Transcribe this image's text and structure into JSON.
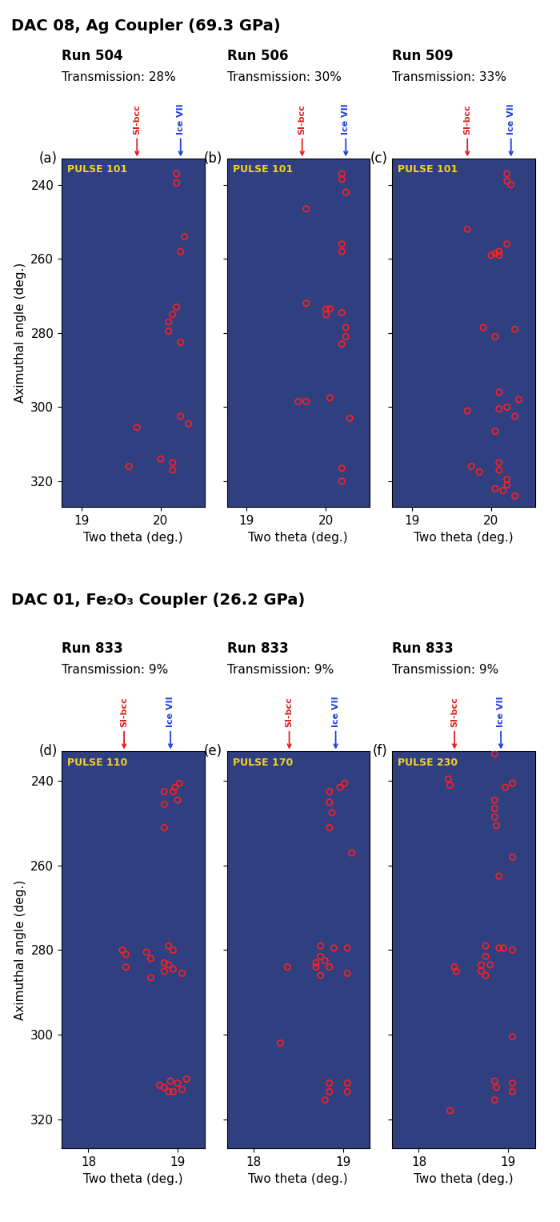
{
  "group_titles": [
    "DAC 08, Ag Coupler (69.3 GPa)",
    "DAC 01, Fe₂O₃ Coupler (26.2 GPa)"
  ],
  "chart_data": [
    {
      "type": "scatter",
      "group": 0,
      "panel": "(a)",
      "run": "Run 504",
      "transmission": "Transmission: 28%",
      "pulse": "PULSE 101",
      "x_label": "Two theta (deg.)",
      "y_label": "Aximuthal angle (deg.)",
      "tick_labels": true,
      "xlim": [
        18.75,
        20.55
      ],
      "xticks": [
        19,
        20
      ],
      "ylim": [
        327,
        233
      ],
      "yticks": [
        240,
        260,
        280,
        300,
        320
      ],
      "color": "#ff2020",
      "marker": "circle",
      "annotations": [
        {
          "text": "SI-bcc",
          "x": 19.7,
          "color": "#e02020"
        },
        {
          "text": "Ice VII",
          "x": 20.25,
          "color": "#1f3fe0"
        }
      ],
      "x": [
        20.2,
        20.2,
        20.3,
        20.25,
        20.2,
        20.15,
        20.1,
        20.1,
        20.25,
        20.25,
        20.35,
        19.7,
        19.6,
        20.0,
        20.15,
        20.15
      ],
      "y": [
        237,
        239.5,
        254,
        258,
        273,
        275,
        277,
        279.5,
        282.5,
        302.5,
        304.5,
        305.5,
        316,
        314,
        315,
        317
      ]
    },
    {
      "type": "scatter",
      "group": 0,
      "panel": "(b)",
      "run": "Run 506",
      "transmission": "Transmission: 30%",
      "pulse": "PULSE 101",
      "x_label": "Two theta (deg.)",
      "tick_labels": "x",
      "xlim": [
        18.75,
        20.55
      ],
      "xticks": [
        19,
        20
      ],
      "ylim": [
        327,
        233
      ],
      "yticks": [
        240,
        260,
        280,
        300,
        320
      ],
      "color": "#ff2020",
      "marker": "circle",
      "annotations": [
        {
          "text": "SI-bcc",
          "x": 19.7,
          "color": "#e02020"
        },
        {
          "text": "Ice VII",
          "x": 20.25,
          "color": "#1f3fe0"
        }
      ],
      "x": [
        20.2,
        20.2,
        20.25,
        19.75,
        20.2,
        20.2,
        19.75,
        20.0,
        20.05,
        20.0,
        20.2,
        20.25,
        20.25,
        20.2,
        19.65,
        19.75,
        20.05,
        20.3,
        20.2,
        20.2
      ],
      "y": [
        237,
        238.5,
        242,
        246.5,
        256,
        258,
        272,
        273.5,
        273.5,
        275,
        274.5,
        278.5,
        281,
        283,
        298.5,
        298.5,
        297.5,
        303,
        316.5,
        320
      ]
    },
    {
      "type": "scatter",
      "group": 0,
      "panel": "(c)",
      "run": "Run 509",
      "transmission": "Transmission: 33%",
      "pulse": "PULSE 101",
      "x_label": "Two theta (deg.)",
      "tick_labels": "x",
      "xlim": [
        18.75,
        20.55
      ],
      "xticks": [
        19,
        20
      ],
      "ylim": [
        327,
        233
      ],
      "yticks": [
        240,
        260,
        280,
        300,
        320
      ],
      "color": "#ff2020",
      "marker": "circle",
      "annotations": [
        {
          "text": "SI-bcc",
          "x": 19.7,
          "color": "#e02020"
        },
        {
          "text": "Ice VII",
          "x": 20.25,
          "color": "#1f3fe0"
        }
      ],
      "x": [
        20.2,
        20.2,
        20.25,
        19.7,
        20.2,
        20.1,
        20.05,
        20.1,
        20.0,
        19.9,
        20.05,
        20.3,
        20.1,
        20.2,
        20.35,
        20.1,
        20.3,
        19.7,
        20.05,
        19.75,
        19.85,
        20.1,
        20.1,
        20.05,
        20.2,
        20.2,
        20.15,
        20.3
      ],
      "y": [
        237,
        239,
        240,
        252,
        256,
        258,
        258.5,
        259,
        259,
        278.5,
        281,
        279,
        296,
        300,
        298,
        300.5,
        302.5,
        301,
        306.5,
        316,
        317.5,
        315,
        317,
        322,
        319.5,
        321,
        322.5,
        324
      ]
    },
    {
      "type": "scatter",
      "group": 1,
      "panel": "(d)",
      "run": "Run 833",
      "transmission": "Transmission: 9%",
      "pulse": "PULSE 110",
      "x_label": "Two theta (deg.)",
      "y_label": "Aximuthal angle (deg.)",
      "tick_labels": true,
      "xlim": [
        17.7,
        19.3
      ],
      "xticks": [
        18,
        19
      ],
      "ylim": [
        327,
        233
      ],
      "yticks": [
        240,
        260,
        280,
        300,
        320
      ],
      "color": "#ff2020",
      "marker": "circle",
      "annotations": [
        {
          "text": "SI-bcc",
          "x": 18.4,
          "color": "#e02020"
        },
        {
          "text": "Ice VII",
          "x": 18.92,
          "color": "#1f3fe0"
        }
      ],
      "x": [
        18.85,
        18.95,
        18.97,
        19.02,
        18.85,
        19.0,
        18.85,
        18.38,
        18.42,
        18.65,
        18.7,
        18.42,
        18.9,
        18.95,
        18.85,
        18.9,
        18.85,
        18.95,
        18.7,
        19.05,
        18.85,
        18.92,
        18.8,
        18.9,
        19.0,
        19.1,
        19.05,
        18.95
      ],
      "y": [
        242.5,
        242.5,
        241.5,
        240.5,
        245.5,
        244.5,
        251,
        280,
        281,
        280.5,
        282,
        284,
        279,
        280,
        283,
        283.5,
        285,
        284.5,
        286.5,
        285.5,
        312.5,
        311,
        312,
        313.5,
        311.5,
        310.5,
        313,
        313.5
      ]
    },
    {
      "type": "scatter",
      "group": 1,
      "panel": "(e)",
      "run": "Run 833",
      "transmission": "Transmission: 9%",
      "pulse": "PULSE 170",
      "x_label": "Two theta (deg.)",
      "tick_labels": "x",
      "xlim": [
        17.7,
        19.3
      ],
      "xticks": [
        18,
        19
      ],
      "ylim": [
        327,
        233
      ],
      "yticks": [
        240,
        260,
        280,
        300,
        320
      ],
      "color": "#ff2020",
      "marker": "circle",
      "annotations": [
        {
          "text": "SI-bcc",
          "x": 18.4,
          "color": "#e02020"
        },
        {
          "text": "Ice VII",
          "x": 18.92,
          "color": "#1f3fe0"
        }
      ],
      "x": [
        18.85,
        18.97,
        19.02,
        18.85,
        18.88,
        18.85,
        19.1,
        18.75,
        18.9,
        19.05,
        18.75,
        18.7,
        18.8,
        18.7,
        18.38,
        18.75,
        19.05,
        18.85,
        18.3,
        18.85,
        19.05,
        18.85,
        19.05,
        18.8
      ],
      "y": [
        242.5,
        241.5,
        240.5,
        245,
        247.5,
        251,
        257,
        279,
        279.5,
        279.5,
        281.5,
        283,
        282.5,
        284,
        284,
        286,
        285.5,
        284,
        302,
        311.5,
        311.5,
        313.5,
        313.5,
        315.5
      ]
    },
    {
      "type": "scatter",
      "group": 1,
      "panel": "(f)",
      "run": "Run 833",
      "transmission": "Transmission: 9%",
      "pulse": "PULSE 230",
      "x_label": "Two theta (deg.)",
      "tick_labels": "x",
      "xlim": [
        17.7,
        19.3
      ],
      "xticks": [
        18,
        19
      ],
      "ylim": [
        327,
        233
      ],
      "yticks": [
        240,
        260,
        280,
        300,
        320
      ],
      "color": "#ff2020",
      "marker": "circle",
      "annotations": [
        {
          "text": "SI-bcc",
          "x": 18.4,
          "color": "#e02020"
        },
        {
          "text": "Ice VII",
          "x": 18.92,
          "color": "#1f3fe0"
        }
      ],
      "x": [
        18.85,
        18.33,
        18.35,
        18.97,
        19.05,
        18.85,
        18.85,
        18.85,
        18.87,
        19.05,
        18.9,
        18.75,
        18.9,
        19.05,
        18.75,
        18.7,
        18.8,
        18.4,
        18.42,
        18.7,
        18.75,
        18.95,
        19.05,
        18.85,
        18.87,
        19.05,
        19.05,
        18.85,
        18.35
      ],
      "y": [
        233.5,
        239.5,
        241,
        241.5,
        240.5,
        244.5,
        246.5,
        248.5,
        250.5,
        258,
        262.5,
        279,
        279.5,
        280,
        281.5,
        283.5,
        283.5,
        284,
        285,
        285,
        286,
        279.5,
        300.5,
        311,
        312.5,
        311.5,
        313.5,
        315.5,
        318
      ]
    }
  ]
}
